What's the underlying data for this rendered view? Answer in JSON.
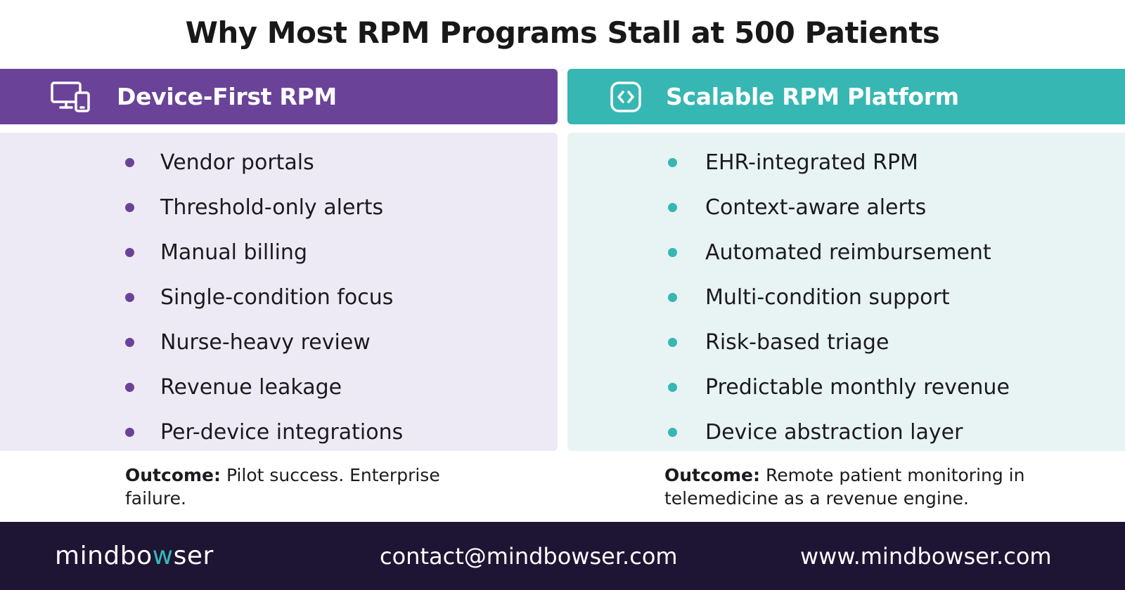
{
  "title": "Why Most RPM Programs Stall at 500 Patients",
  "colors": {
    "purple": "#6a4399",
    "teal": "#37b7b3",
    "left_panel_bg": "#eeeaf5",
    "right_panel_bg": "#e8f4f4",
    "footer_bg": "#1e1433"
  },
  "left": {
    "icon": "devices-icon",
    "header": "Device-First RPM",
    "items": [
      "Vendor portals",
      "Threshold-only alerts",
      "Manual billing",
      "Single-condition focus",
      "Nurse-heavy review",
      "Revenue leakage",
      "Per-device integrations"
    ],
    "outcome_label": "Outcome:",
    "outcome_text": " Pilot success. Enterprise failure."
  },
  "right": {
    "icon": "code-brackets-icon",
    "header": "Scalable RPM Platform",
    "items": [
      "EHR-integrated RPM",
      "Context-aware alerts",
      "Automated reimbursement",
      "Multi-condition support",
      "Risk-based triage",
      "Predictable monthly revenue",
      "Device abstraction layer"
    ],
    "outcome_label": "Outcome:",
    "outcome_text": " Remote patient monitoring in telemedicine as a revenue engine."
  },
  "footer": {
    "logo_part1": "mindbo",
    "logo_accent": "w",
    "logo_part2": "ser",
    "email": "contact@mindbowser.com",
    "website": "www.mindbowser.com"
  }
}
